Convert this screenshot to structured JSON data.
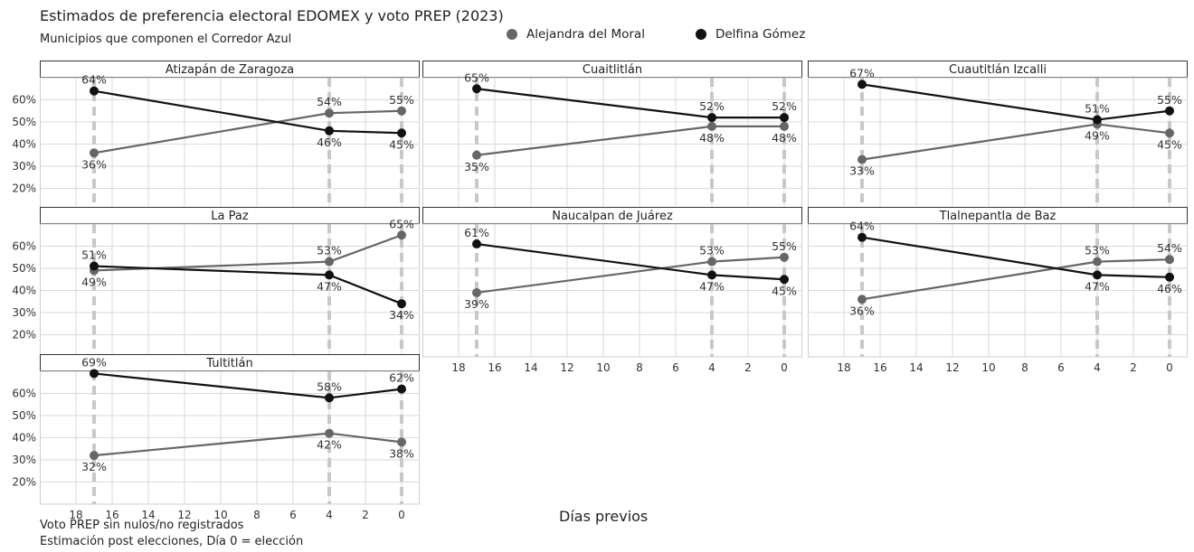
{
  "header": {
    "title": "Estimados de preferencia electoral EDOMEX y voto PREP (2023)",
    "subtitle": "Municipios que componen el Corredor Azul"
  },
  "footer": {
    "caption_1": "Voto PREP sin nulos/no registrados",
    "caption_2": "Estimación post elecciones, Día 0 = elección"
  },
  "colors": {
    "alejandra": "#666666",
    "delfina": "#111111",
    "grid": "#d9d9d9",
    "vline": "#c8c8c8"
  },
  "chart_data": {
    "type": "line",
    "xlabel": "Días previos",
    "x_reversed": true,
    "xlim": [
      20,
      -1
    ],
    "ylim": [
      10,
      70
    ],
    "x_ticks": [
      18,
      16,
      14,
      12,
      10,
      8,
      6,
      4,
      2,
      0
    ],
    "y_ticks": [
      20,
      30,
      40,
      50,
      60
    ],
    "y_tick_labels": [
      "20%",
      "30%",
      "40%",
      "50%",
      "60%"
    ],
    "event_days": [
      17,
      4,
      0
    ],
    "legend": {
      "position": "top",
      "series": [
        "Alejandra del Moral",
        "Delfina Gómez"
      ]
    },
    "grid": true,
    "panels": [
      {
        "title": "Atizapán de Zaragoza",
        "x": [
          17,
          4,
          0
        ],
        "series": [
          {
            "name": "Alejandra del Moral",
            "values": [
              36,
              54,
              55
            ]
          },
          {
            "name": "Delfina Gómez",
            "values": [
              64,
              46,
              45
            ]
          }
        ]
      },
      {
        "title": "Cuaitlitlán",
        "x": [
          17,
          4,
          0
        ],
        "series": [
          {
            "name": "Alejandra del Moral",
            "values": [
              35,
              48,
              48
            ]
          },
          {
            "name": "Delfina Gómez",
            "values": [
              65,
              52,
              52
            ]
          }
        ]
      },
      {
        "title": "Cuautitlán Izcalli",
        "x": [
          17,
          4,
          0
        ],
        "series": [
          {
            "name": "Alejandra del Moral",
            "values": [
              33,
              49,
              45
            ]
          },
          {
            "name": "Delfina Gómez",
            "values": [
              67,
              51,
              55
            ]
          }
        ]
      },
      {
        "title": "La Paz",
        "x": [
          17,
          4,
          0
        ],
        "series": [
          {
            "name": "Alejandra del Moral",
            "values": [
              49,
              53,
              65
            ]
          },
          {
            "name": "Delfina Gómez",
            "values": [
              51,
              47,
              34
            ]
          }
        ]
      },
      {
        "title": "Naucalpan de Juárez",
        "x": [
          17,
          4,
          0
        ],
        "series": [
          {
            "name": "Alejandra del Moral",
            "values": [
              39,
              53,
              55
            ]
          },
          {
            "name": "Delfina Gómez",
            "values": [
              61,
              47,
              45
            ]
          }
        ]
      },
      {
        "title": "Tlalnepantla de Baz",
        "x": [
          17,
          4,
          0
        ],
        "series": [
          {
            "name": "Alejandra del Moral",
            "values": [
              36,
              53,
              54
            ]
          },
          {
            "name": "Delfina Gómez",
            "values": [
              64,
              47,
              46
            ]
          }
        ]
      },
      {
        "title": "Tultitlán",
        "x": [
          17,
          4,
          0
        ],
        "series": [
          {
            "name": "Alejandra del Moral",
            "values": [
              32,
              42,
              38
            ]
          },
          {
            "name": "Delfina Gómez",
            "values": [
              69,
              58,
              62
            ]
          }
        ]
      }
    ]
  }
}
